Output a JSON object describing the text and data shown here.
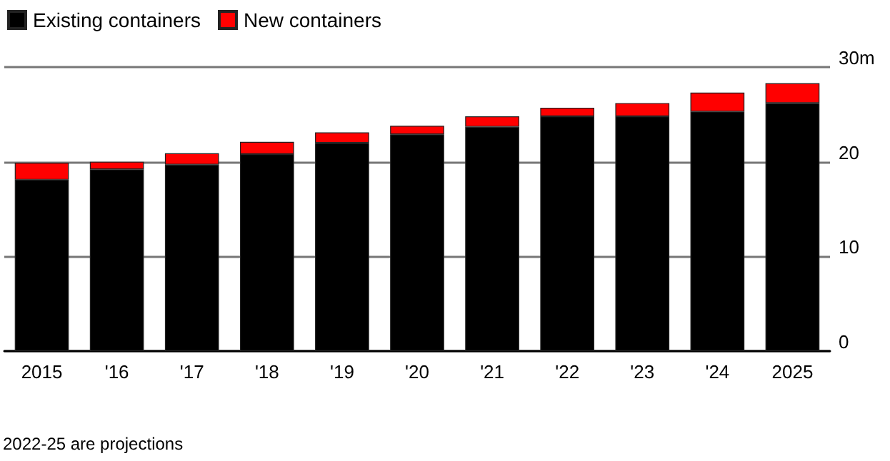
{
  "chart_data": {
    "type": "bar",
    "stacked": true,
    "categories": [
      "2015",
      "'16",
      "'17",
      "'18",
      "'19",
      "'20",
      "'21",
      "'22",
      "'23",
      "'24",
      "2025"
    ],
    "series": [
      {
        "name": "Existing containers",
        "color": "#000000",
        "values": [
          18.1,
          19.2,
          19.7,
          20.8,
          22.0,
          22.9,
          23.7,
          24.8,
          24.8,
          25.3,
          26.2
        ]
      },
      {
        "name": "New containers",
        "color": "#ff0000",
        "values": [
          1.8,
          0.8,
          1.2,
          1.3,
          1.1,
          0.9,
          1.1,
          0.9,
          1.4,
          2.0,
          2.1
        ]
      }
    ],
    "ylim": [
      0,
      30
    ],
    "yticks": [
      0,
      10,
      20,
      {
        "value": 30,
        "label": "30m"
      }
    ],
    "grid": "y",
    "legend": "top left",
    "annotations": [
      "2022-25 are projections"
    ]
  }
}
